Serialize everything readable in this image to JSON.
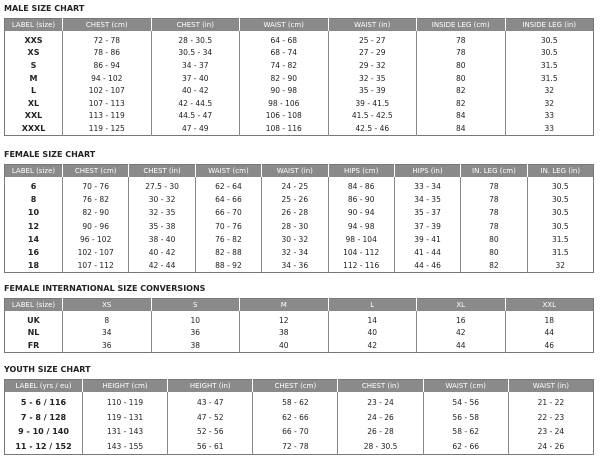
{
  "sections": [
    {
      "title": "MALE SIZE CHART",
      "table": {
        "header": [
          "LABEL (size)",
          "CHEST (cm)",
          "CHEST (in)",
          "WAIST (cm)",
          "WAIST (in)",
          "INSIDE LEG (cm)",
          "INSIDE LEG (in)"
        ],
        "rows": [
          [
            "XXS",
            "72 - 78",
            "28 - 30.5",
            "64 - 68",
            "25 - 27",
            78,
            30.5
          ],
          [
            "XS",
            "78 - 86",
            "30.5 - 34",
            "68 - 74",
            "27 - 29",
            78,
            30.5
          ],
          [
            "S",
            "86 - 94",
            "34 - 37",
            "74 - 82",
            "29 - 32",
            80,
            31.5
          ],
          [
            "M",
            "94 - 102",
            "37 - 40",
            "82 - 90",
            "32 - 35",
            80,
            31.5
          ],
          [
            "L",
            "102 - 107",
            "40 - 42",
            "90 - 98",
            "35 - 39",
            82,
            32
          ],
          [
            "XL",
            "107 - 113",
            "42 - 44.5",
            "98 - 106",
            "39 - 41.5",
            82,
            32
          ],
          [
            "XXL",
            "113 - 119",
            "44.5 - 47",
            "106 - 108",
            "41.5 - 42.5",
            84,
            33
          ],
          [
            "XXXL",
            "119 - 125",
            "47 - 49",
            "108 - 116",
            "42.5 - 46",
            84,
            33
          ]
        ]
      }
    },
    {
      "title": "FEMALE SIZE CHART",
      "table": {
        "header": [
          "LABEL (size)",
          "CHEST (cm)",
          "CHEST (in)",
          "WAIST (cm)",
          "WAIST (in)",
          "HIPS (cm)",
          "HIPS (in)",
          "IN. LEG (cm)",
          "IN. LEG (in)"
        ],
        "rows": [
          [
            6,
            "70 - 76",
            "27.5 - 30",
            "62 - 64",
            "24 - 25",
            "84 - 86",
            "33 - 34",
            78,
            30.5
          ],
          [
            8,
            "76 - 82",
            "30 - 32",
            "64 - 66",
            "25 - 26",
            "86 - 90",
            "34 - 35",
            78,
            30.5
          ],
          [
            10,
            "82 - 90",
            "32 - 35",
            "66 - 70",
            "26 - 28",
            "90 - 94",
            "35 - 37",
            78,
            30.5
          ],
          [
            12,
            "90 - 96",
            "35 - 38",
            "70 - 76",
            "28 - 30",
            "94 - 98",
            "37 - 39",
            78,
            30.5
          ],
          [
            14,
            "96 - 102",
            "38 - 40",
            "76 - 82",
            "30 - 32",
            "98 - 104",
            "39 - 41",
            80,
            31.5
          ],
          [
            16,
            "102 - 107",
            "40 - 42",
            "82 - 88",
            "32 - 34",
            "104 - 112",
            "41 - 44",
            80,
            31.5
          ],
          [
            18,
            "107 - 112",
            "42 - 44",
            "88 - 92",
            "34 - 36",
            "112 - 116",
            "44 - 46",
            82,
            32
          ]
        ]
      }
    },
    {
      "title": "FEMALE INTERNATIONAL SIZE CONVERSIONS",
      "table": {
        "header": [
          "LABEL (size)",
          "XS",
          "S",
          "M",
          "L",
          "XL",
          "XXL"
        ],
        "rows": [
          [
            "UK",
            8,
            10,
            12,
            14,
            16,
            18
          ],
          [
            "NL",
            34,
            36,
            38,
            40,
            42,
            44
          ],
          [
            "FR",
            36,
            38,
            40,
            42,
            44,
            46
          ]
        ]
      }
    },
    {
      "title": "YOUTH SIZE CHART",
      "table": {
        "header": [
          "LABEL (yrs / eu)",
          "HEIGHT (cm)",
          "HEIGHT (in)",
          "CHEST (cm)",
          "CHEST (in)",
          "WAIST (cm)",
          "WAIST (in)"
        ],
        "rows": [
          [
            "5 - 6 / 116",
            "110 - 119",
            "43 - 47",
            "58 - 62",
            "23 - 24",
            "54 - 56",
            "21 - 22"
          ],
          [
            "7 - 8 / 128",
            "119 - 131",
            "47 - 52",
            "62 - 66",
            "24 - 26",
            "56 - 58",
            "22 - 23"
          ],
          [
            "9 - 10 / 140",
            "131 - 143",
            "52 - 56",
            "66 - 70",
            "26 - 28",
            "58 - 62",
            "23 - 24"
          ],
          [
            "11 - 12 / 152",
            "143 - 155",
            "56 - 61",
            "72 - 78",
            "28 - 30.5",
            "62 - 66",
            "24 - 26"
          ]
        ]
      }
    }
  ]
}
